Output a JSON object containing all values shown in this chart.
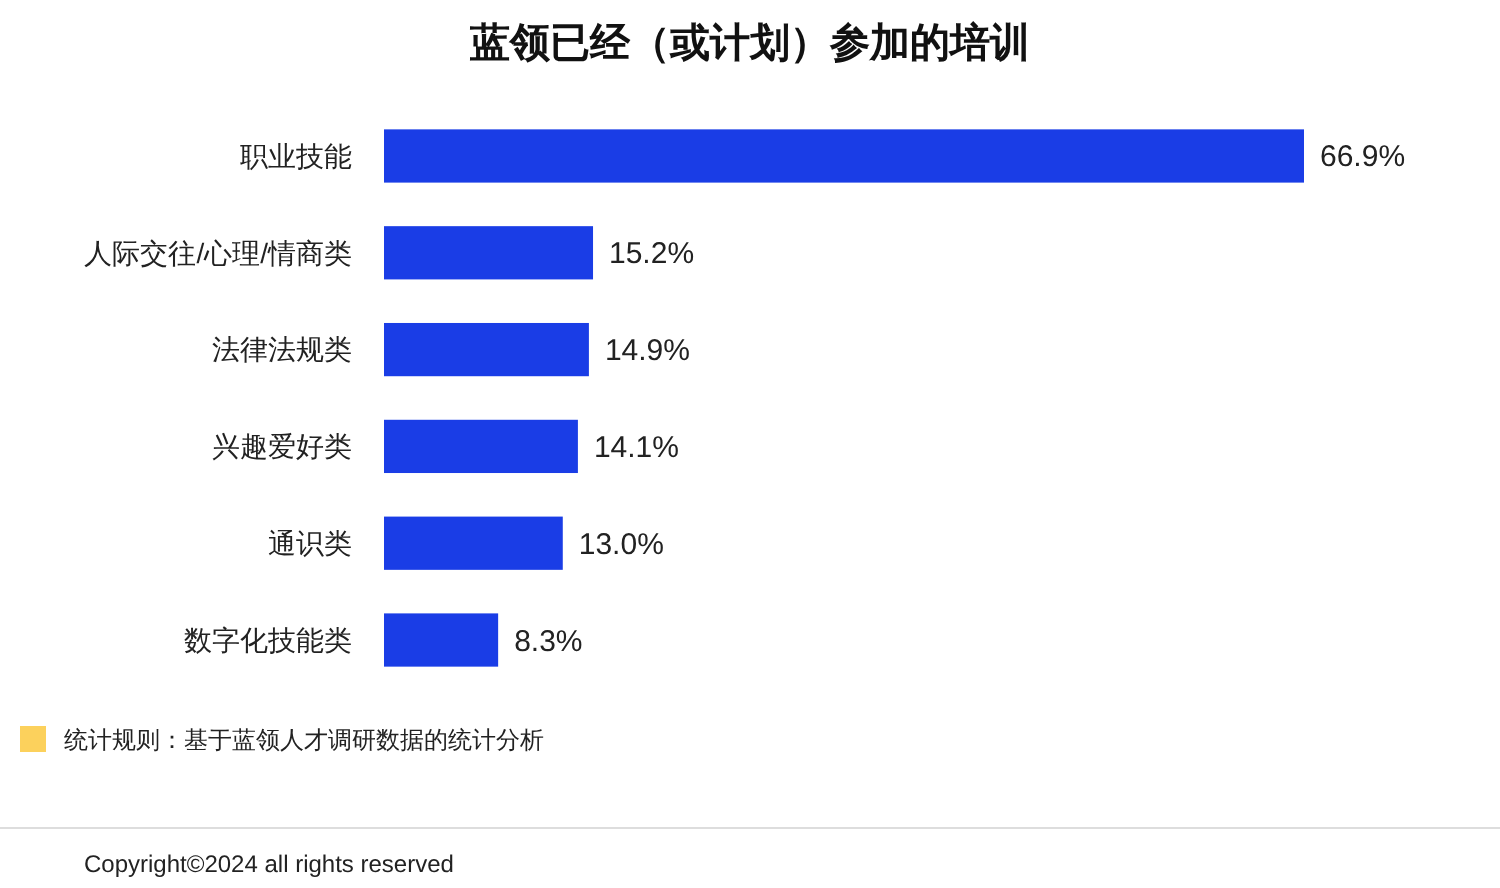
{
  "chart_data": {
    "type": "bar",
    "orientation": "horizontal",
    "title": "蓝领已经（或计划）参加的培训",
    "categories": [
      "职业技能",
      "人际交往/心理/情商类",
      "法律法规类",
      "兴趣爱好类",
      "通识类",
      "数字化技能类"
    ],
    "values": [
      66.9,
      15.2,
      14.9,
      14.1,
      13.0,
      8.3
    ],
    "value_labels": [
      "66.9%",
      "15.2%",
      "14.9%",
      "14.1%",
      "13.0%",
      "8.3%"
    ],
    "color": "#1a3de6",
    "annotations": [
      "统计规则：基于蓝领人才调研数据的统计分析",
      "Copyright©2024 all rights reserved"
    ]
  }
}
